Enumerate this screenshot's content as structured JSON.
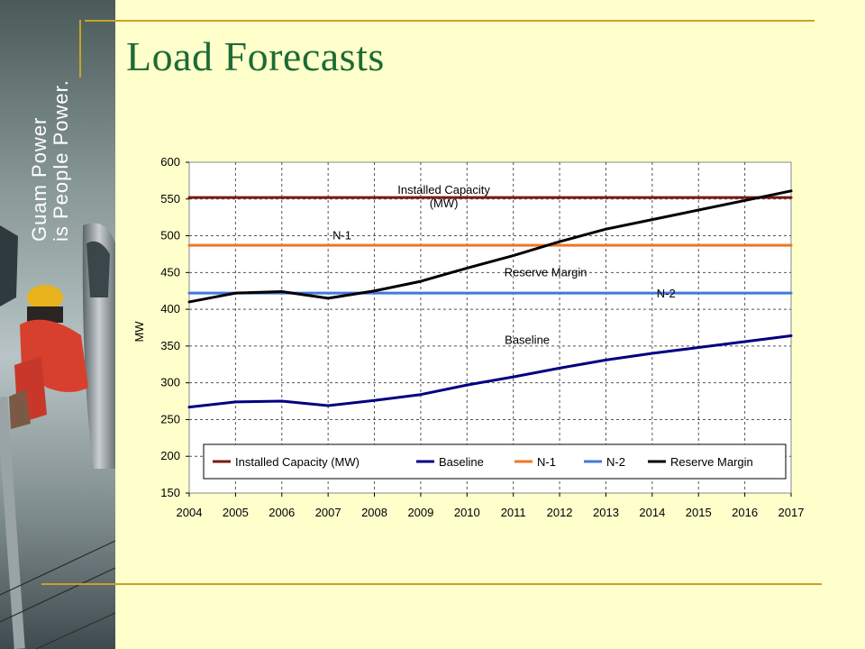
{
  "slide": {
    "title": "Load Forecasts",
    "brand": {
      "line1": "Guam Power",
      "line2": "is People Power."
    },
    "title_color": "#1c6b35",
    "background": "#ffffcc",
    "accent": "#c8a228"
  },
  "chart_data": {
    "type": "line",
    "title": "",
    "xlabel": "",
    "ylabel": "MW",
    "x": [
      2004,
      2005,
      2006,
      2007,
      2008,
      2009,
      2010,
      2011,
      2012,
      2013,
      2014,
      2015,
      2016,
      2017
    ],
    "xlim": [
      2004,
      2017
    ],
    "ylim": [
      150,
      600
    ],
    "yticks": [
      150,
      200,
      250,
      300,
      350,
      400,
      450,
      500,
      550,
      600
    ],
    "grid": "dashed",
    "legend_position": "bottom-inside",
    "series": [
      {
        "name": "Installed Capacity (MW)",
        "color": "#7a1a10",
        "values": [
          552,
          552,
          552,
          552,
          552,
          552,
          552,
          552,
          552,
          552,
          552,
          552,
          552,
          552
        ]
      },
      {
        "name": "Baseline",
        "color": "#000080",
        "values": [
          267,
          274,
          275,
          269,
          276,
          284,
          297,
          308,
          320,
          331,
          340,
          348,
          356,
          364
        ]
      },
      {
        "name": "N-1",
        "color": "#ee7722",
        "values": [
          487,
          487,
          487,
          487,
          487,
          487,
          487,
          487,
          487,
          487,
          487,
          487,
          487,
          487
        ]
      },
      {
        "name": "N-2",
        "color": "#4477dd",
        "values": [
          422,
          422,
          422,
          422,
          422,
          422,
          422,
          422,
          422,
          422,
          422,
          422,
          422,
          422
        ]
      },
      {
        "name": "Reserve Margin",
        "color": "#000000",
        "values": [
          410,
          422,
          424,
          415,
          425,
          438,
          456,
          473,
          492,
          509,
          522,
          535,
          548,
          561
        ]
      }
    ],
    "annotations": [
      {
        "lines": [
          "Installed Capacity",
          "(MW)"
        ],
        "x": 2009.5,
        "y": 557
      },
      {
        "lines": [
          "N-1"
        ],
        "x": 2007.3,
        "y": 495
      },
      {
        "lines": [
          "Reserve Margin"
        ],
        "x": 2011.7,
        "y": 445
      },
      {
        "lines": [
          "N-2"
        ],
        "x": 2014.3,
        "y": 416
      },
      {
        "lines": [
          "Baseline"
        ],
        "x": 2011.3,
        "y": 353
      }
    ]
  }
}
